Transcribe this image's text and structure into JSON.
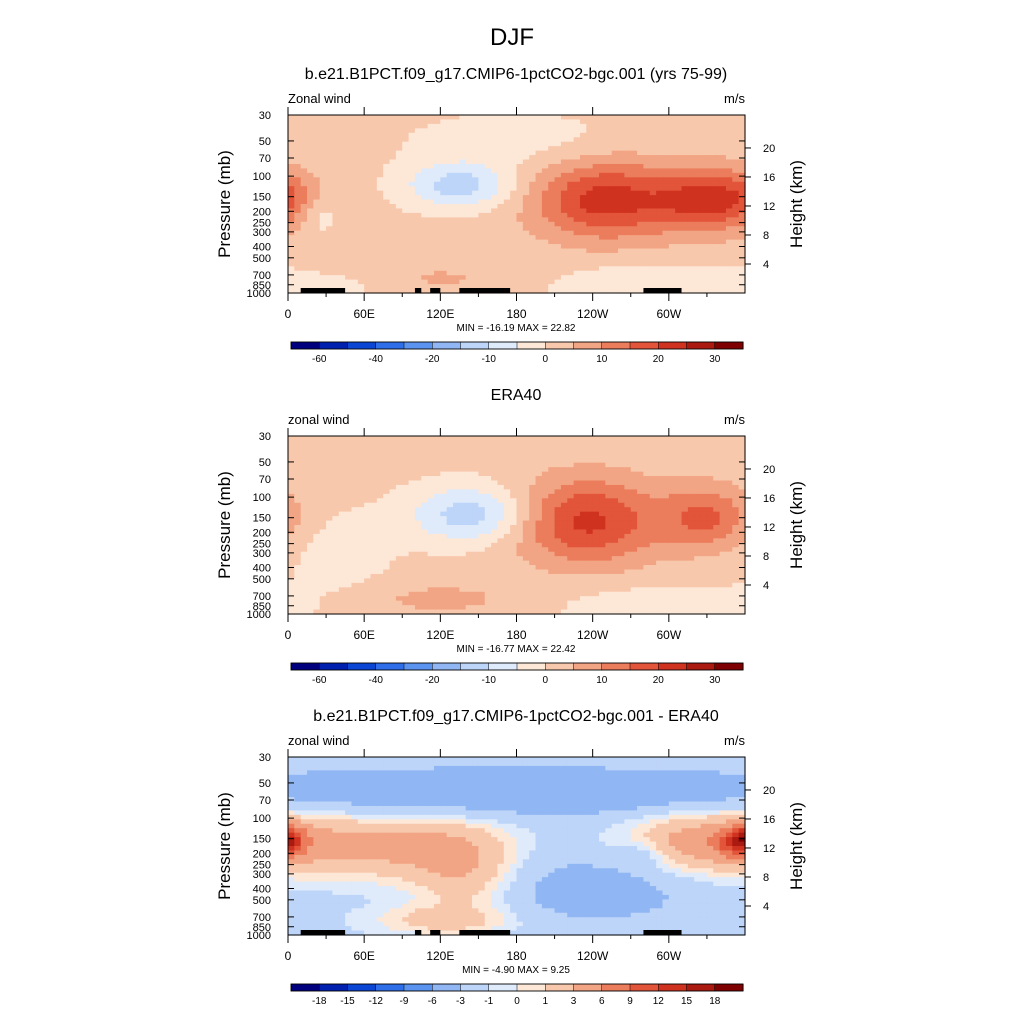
{
  "figure": {
    "title": "DJF"
  },
  "palette": {
    "wind": [
      "#00007f",
      "#0020b0",
      "#0a45d4",
      "#2e6ee8",
      "#5b94f0",
      "#90b6f4",
      "#bdd5f8",
      "#dfeafb",
      "#fde8d8",
      "#f8c8ad",
      "#f2a584",
      "#eb7d5c",
      "#e2553a",
      "#d03220",
      "#aa1a10",
      "#7f0000"
    ],
    "diff": [
      "#00007f",
      "#0020b0",
      "#0a45d4",
      "#2e6ee8",
      "#5b94f0",
      "#90b6f4",
      "#bdd5f8",
      "#dfeafb",
      "#fde8d8",
      "#f8c8ad",
      "#f2a584",
      "#eb7d5c",
      "#e2553a",
      "#d03220",
      "#aa1a10",
      "#7f0000"
    ],
    "land": "#000000"
  },
  "chart_data": [
    {
      "type": "heatmap",
      "title": "b.e21.B1PCT.f09_g17.CMIP6-1pctCO2-bgc.001 (yrs 75-99)",
      "left_label": "Zonal wind",
      "right_label": "m/s",
      "ylabel": "Pressure (mb)",
      "ylabel_right": "Height (km)",
      "x_ticks": [
        "0",
        "60E",
        "120E",
        "180",
        "120W",
        "60W"
      ],
      "xlim": [
        0,
        360
      ],
      "y_ticks": [
        "30",
        "50",
        "70",
        "100",
        "150",
        "200",
        "250",
        "300",
        "400",
        "500",
        "700",
        "850",
        "1000"
      ],
      "y_ticks_right": [
        "20",
        "16",
        "12",
        "8",
        "4"
      ],
      "ylim": [
        1000,
        30
      ],
      "y_scale": "log",
      "stats": "MIN = -16.19  MAX =  22.82",
      "min": -16.19,
      "max": 22.82,
      "colorbar_labels": [
        "-60",
        "-40",
        "-20",
        "-10",
        "0",
        "10",
        "20",
        "30"
      ],
      "background_value": 1.5,
      "features": [
        {
          "lon": 135,
          "p": 120,
          "val": -14,
          "wx": 30,
          "wy": 0.32
        },
        {
          "lon": 250,
          "p": 160,
          "val": 21,
          "wx": 40,
          "wy": 0.55
        },
        {
          "lon": 330,
          "p": 160,
          "val": 18,
          "wx": 28,
          "wy": 0.45
        },
        {
          "lon": 0,
          "p": 150,
          "val": 6,
          "wx": 18,
          "wy": 0.35
        },
        {
          "lon": 25,
          "p": 220,
          "val": -5,
          "wx": 10,
          "wy": 0.25
        },
        {
          "lon": 120,
          "p": 750,
          "val": 4,
          "wx": 50,
          "wy": 0.25
        },
        {
          "lon": 290,
          "p": 850,
          "val": -6,
          "wx": 60,
          "wy": 0.3
        },
        {
          "lon": 180,
          "p": 50,
          "val": -4,
          "wx": 60,
          "wy": 0.4
        },
        {
          "lon": 40,
          "p": 900,
          "val": -3,
          "wx": 30,
          "wy": 0.2
        }
      ],
      "land": [
        [
          10,
          45
        ],
        [
          100,
          105
        ],
        [
          112,
          120
        ],
        [
          135,
          175
        ],
        [
          280,
          310
        ]
      ]
    },
    {
      "type": "heatmap",
      "title": "ERA40",
      "left_label": "zonal wind",
      "right_label": "m/s",
      "ylabel": "Pressure (mb)",
      "ylabel_right": "Height (km)",
      "x_ticks": [
        "0",
        "60E",
        "120E",
        "180",
        "120W",
        "60W"
      ],
      "xlim": [
        0,
        360
      ],
      "y_ticks": [
        "30",
        "50",
        "70",
        "100",
        "150",
        "200",
        "250",
        "300",
        "400",
        "500",
        "700",
        "850",
        "1000"
      ],
      "y_ticks_right": [
        "20",
        "16",
        "12",
        "8",
        "4"
      ],
      "ylim": [
        1000,
        30
      ],
      "y_scale": "log",
      "stats": "MIN = -16.77  MAX =  22.42",
      "min": -16.77,
      "max": 22.42,
      "colorbar_labels": [
        "-60",
        "-40",
        "-20",
        "-10",
        "0",
        "10",
        "20",
        "30"
      ],
      "background_value": 1.5,
      "features": [
        {
          "lon": 145,
          "p": 140,
          "val": -15,
          "wx": 34,
          "wy": 0.4
        },
        {
          "lon": 235,
          "p": 160,
          "val": 20,
          "wx": 40,
          "wy": 0.6
        },
        {
          "lon": 330,
          "p": 150,
          "val": 14,
          "wx": 26,
          "wy": 0.45
        },
        {
          "lon": 40,
          "p": 300,
          "val": -4,
          "wx": 30,
          "wy": 0.6
        },
        {
          "lon": 120,
          "p": 750,
          "val": 5,
          "wx": 50,
          "wy": 0.25
        },
        {
          "lon": 290,
          "p": 850,
          "val": -5,
          "wx": 60,
          "wy": 0.3
        }
      ],
      "land": []
    },
    {
      "type": "heatmap",
      "title": "b.e21.B1PCT.f09_g17.CMIP6-1pctCO2-bgc.001 - ERA40",
      "left_label": "zonal wind",
      "right_label": "m/s",
      "ylabel": "Pressure (mb)",
      "ylabel_right": "Height (km)",
      "x_ticks": [
        "0",
        "60E",
        "120E",
        "180",
        "120W",
        "60W"
      ],
      "xlim": [
        0,
        360
      ],
      "y_ticks": [
        "30",
        "50",
        "70",
        "100",
        "150",
        "200",
        "250",
        "300",
        "400",
        "500",
        "700",
        "850",
        "1000"
      ],
      "y_ticks_right": [
        "20",
        "16",
        "12",
        "8",
        "4"
      ],
      "ylim": [
        1000,
        30
      ],
      "y_scale": "log",
      "stats": "MIN =  -4.90  MAX =   9.25",
      "min": -4.9,
      "max": 9.25,
      "colorbar_labels": [
        "-18",
        "-15",
        "-12",
        "-9",
        "-6",
        "-3",
        "-1",
        "0",
        "1",
        "3",
        "6",
        "9",
        "12",
        "15",
        "18"
      ],
      "background_value": -1.5,
      "features": [
        {
          "lon": 180,
          "p": 60,
          "val": -4,
          "wx": 200,
          "wy": 0.35
        },
        {
          "lon": 80,
          "p": 170,
          "val": 5,
          "wx": 55,
          "wy": 0.45
        },
        {
          "lon": 330,
          "p": 160,
          "val": 6,
          "wx": 45,
          "wy": 0.45
        },
        {
          "lon": 355,
          "p": 160,
          "val": 8,
          "wx": 12,
          "wy": 0.2
        },
        {
          "lon": 0,
          "p": 150,
          "val": 6,
          "wx": 8,
          "wy": 0.2
        },
        {
          "lon": 140,
          "p": 300,
          "val": 4,
          "wx": 30,
          "wy": 0.6
        },
        {
          "lon": 240,
          "p": 400,
          "val": -3,
          "wx": 60,
          "wy": 0.5
        },
        {
          "lon": 280,
          "p": 200,
          "val": -2,
          "wx": 12,
          "wy": 0.2
        },
        {
          "lon": 120,
          "p": 750,
          "val": 3,
          "wx": 40,
          "wy": 0.2
        }
      ],
      "land": [
        [
          10,
          45
        ],
        [
          100,
          105
        ],
        [
          112,
          120
        ],
        [
          135,
          175
        ],
        [
          280,
          310
        ]
      ]
    }
  ]
}
